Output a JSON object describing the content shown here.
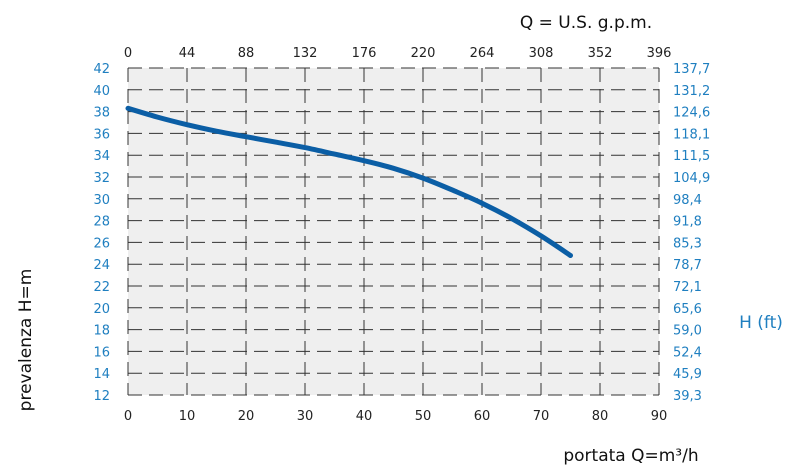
{
  "chart_data": {
    "type": "line",
    "title": "",
    "x_bottom": {
      "label": "portata Q=m³/h",
      "range": [
        0,
        90
      ],
      "ticks": [
        "0",
        "10",
        "20",
        "30",
        "40",
        "50",
        "60",
        "70",
        "80",
        "90"
      ]
    },
    "x_top": {
      "label": "Q = U.S. g.p.m.",
      "ticks": [
        "0",
        "44",
        "88",
        "132",
        "176",
        "220",
        "264",
        "308",
        "352",
        "396"
      ]
    },
    "y_left": {
      "label": "prevalenza H=m",
      "range": [
        12,
        42
      ],
      "ticks": [
        "12",
        "14",
        "16",
        "18",
        "20",
        "22",
        "24",
        "26",
        "28",
        "30",
        "32",
        "34",
        "36",
        "38",
        "40",
        "42"
      ]
    },
    "y_right": {
      "label": "H (ft)",
      "ticks": [
        "39,3",
        "45,9",
        "52,4",
        "59,0",
        "65,6",
        "72,1",
        "78,7",
        "85,3",
        "91,8",
        "98,4",
        "104,9",
        "111,5",
        "118,1",
        "124,6",
        "131,2",
        "137,7"
      ]
    },
    "grid": true,
    "legend": "none",
    "series": [
      {
        "color": "#0b5ea5",
        "x": [
          0,
          5,
          10,
          15,
          20,
          25,
          30,
          35,
          40,
          45,
          50,
          55,
          60,
          65,
          70,
          75
        ],
        "y": [
          38.3,
          37.5,
          36.8,
          36.2,
          35.7,
          35.2,
          34.7,
          34.1,
          33.5,
          32.8,
          31.9,
          30.8,
          29.6,
          28.2,
          26.6,
          24.8
        ]
      }
    ]
  }
}
